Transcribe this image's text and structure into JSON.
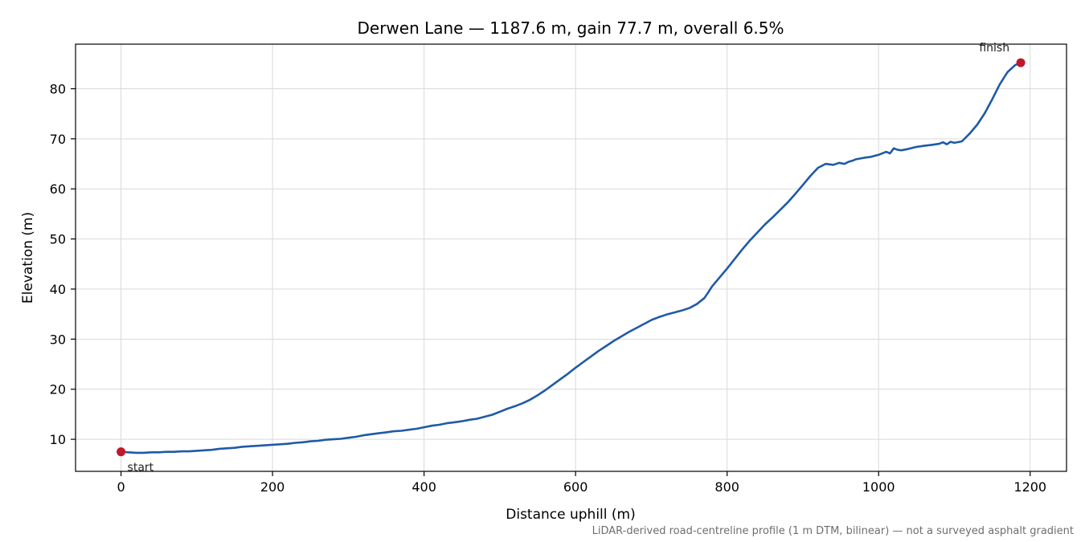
{
  "chart_data": {
    "type": "line",
    "title": "Derwen Lane — 1187.6 m, gain 77.7 m, overall 6.5%",
    "xlabel": "Distance uphill (m)",
    "ylabel": "Elevation (m)",
    "footnote": "LiDAR-derived road-centreline profile (1 m DTM, bilinear) — not a surveyed asphalt gradient",
    "xlim": [
      -60,
      1248
    ],
    "ylim": [
      3.6,
      88.9
    ],
    "x_ticks": [
      0,
      200,
      400,
      600,
      800,
      1000,
      1200
    ],
    "y_ticks": [
      10,
      20,
      30,
      40,
      50,
      60,
      70,
      80
    ],
    "grid": true,
    "colors": {
      "line": "#1f5aa6",
      "markers": "#c0182a"
    },
    "series": [
      {
        "x": [
          0,
          10,
          20,
          30,
          40,
          50,
          60,
          70,
          80,
          90,
          100,
          110,
          120,
          130,
          140,
          150,
          160,
          170,
          180,
          190,
          200,
          210,
          220,
          230,
          240,
          250,
          260,
          270,
          280,
          290,
          300,
          310,
          320,
          330,
          340,
          350,
          360,
          370,
          380,
          390,
          400,
          410,
          420,
          430,
          440,
          450,
          460,
          470,
          480,
          490,
          500,
          510,
          520,
          530,
          540,
          550,
          560,
          570,
          580,
          590,
          600,
          610,
          620,
          630,
          640,
          650,
          660,
          670,
          680,
          690,
          700,
          710,
          720,
          730,
          740,
          750,
          760,
          770,
          775,
          780,
          790,
          800,
          810,
          820,
          830,
          840,
          850,
          860,
          870,
          880,
          890,
          900,
          910,
          920,
          930,
          940,
          948,
          955,
          960,
          965,
          970,
          980,
          990,
          1000,
          1010,
          1015,
          1020,
          1025,
          1030,
          1040,
          1050,
          1060,
          1070,
          1080,
          1085,
          1090,
          1095,
          1100,
          1110,
          1120,
          1130,
          1140,
          1150,
          1160,
          1170,
          1180,
          1187.6
        ],
        "y": [
          7.5,
          7.4,
          7.3,
          7.3,
          7.4,
          7.4,
          7.5,
          7.5,
          7.6,
          7.6,
          7.7,
          7.8,
          7.9,
          8.1,
          8.2,
          8.3,
          8.5,
          8.6,
          8.7,
          8.8,
          8.9,
          9.0,
          9.1,
          9.3,
          9.4,
          9.6,
          9.7,
          9.9,
          10.0,
          10.1,
          10.3,
          10.5,
          10.8,
          11.0,
          11.2,
          11.4,
          11.6,
          11.7,
          11.9,
          12.1,
          12.4,
          12.7,
          12.9,
          13.2,
          13.4,
          13.6,
          13.9,
          14.1,
          14.5,
          14.9,
          15.5,
          16.1,
          16.6,
          17.2,
          17.9,
          18.8,
          19.8,
          20.9,
          22.0,
          23.1,
          24.3,
          25.4,
          26.5,
          27.6,
          28.6,
          29.6,
          30.5,
          31.4,
          32.2,
          33.0,
          33.8,
          34.4,
          34.9,
          35.3,
          35.7,
          36.2,
          37.0,
          38.2,
          39.3,
          40.5,
          42.3,
          44.1,
          46.0,
          47.9,
          49.7,
          51.3,
          52.9,
          54.3,
          55.8,
          57.3,
          59.0,
          60.8,
          62.6,
          64.2,
          65.0,
          64.8,
          65.2,
          65.0,
          65.4,
          65.6,
          65.9,
          66.2,
          66.4,
          66.8,
          67.4,
          67.1,
          68.1,
          67.8,
          67.7,
          68.0,
          68.4,
          68.6,
          68.8,
          69.0,
          69.3,
          68.9,
          69.4,
          69.2,
          69.5,
          71.0,
          72.8,
          75.1,
          77.9,
          80.9,
          83.3,
          84.7,
          85.2
        ]
      }
    ],
    "annotations": [
      {
        "text": "start",
        "x": 0,
        "y": 7.5
      },
      {
        "text": "finish",
        "x": 1187.6,
        "y": 85.2
      }
    ]
  }
}
